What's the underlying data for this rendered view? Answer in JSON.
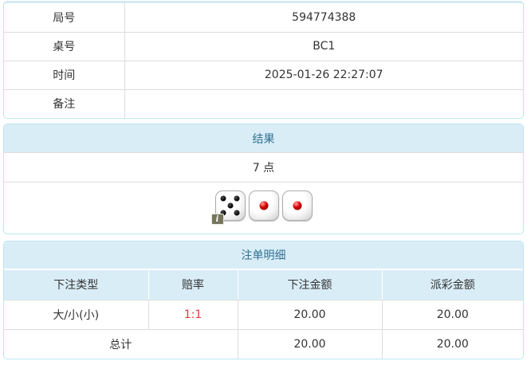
{
  "game_info": {
    "rows": [
      {
        "label": "局号",
        "value": "594774388"
      },
      {
        "label": "桌号",
        "value": "BC1"
      },
      {
        "label": "时间",
        "value": "2025-01-26 22:27:07"
      },
      {
        "label": "备注",
        "value": ""
      }
    ]
  },
  "result": {
    "title": "结果",
    "points": "7 点",
    "dice": [
      {
        "value": 5,
        "pip": "black",
        "badge": "i"
      },
      {
        "value": 1,
        "pip": "red"
      },
      {
        "value": 1,
        "pip": "red"
      }
    ]
  },
  "bets": {
    "title": "注单明细",
    "columns": [
      "下注类型",
      "赔率",
      "下注金额",
      "派彩金额"
    ],
    "rows": [
      {
        "type": "大/小(小)",
        "odds": "1:1",
        "bet": "20.00",
        "payout": "20.00"
      }
    ],
    "total": {
      "label": "总计",
      "bet": "20.00",
      "payout": "20.00"
    }
  },
  "colors": {
    "panel_border": "#bce8f1",
    "panel_top_accent": "#d5eaf2",
    "heading_bg": "#d9edf7",
    "heading_text": "#31708f",
    "divider": "#dddddd",
    "body_text": "#333333",
    "odds_red": "#e4393c",
    "pip_black": "#111111",
    "pip_red": "#cc0000",
    "badge_bg": "#76765f"
  }
}
